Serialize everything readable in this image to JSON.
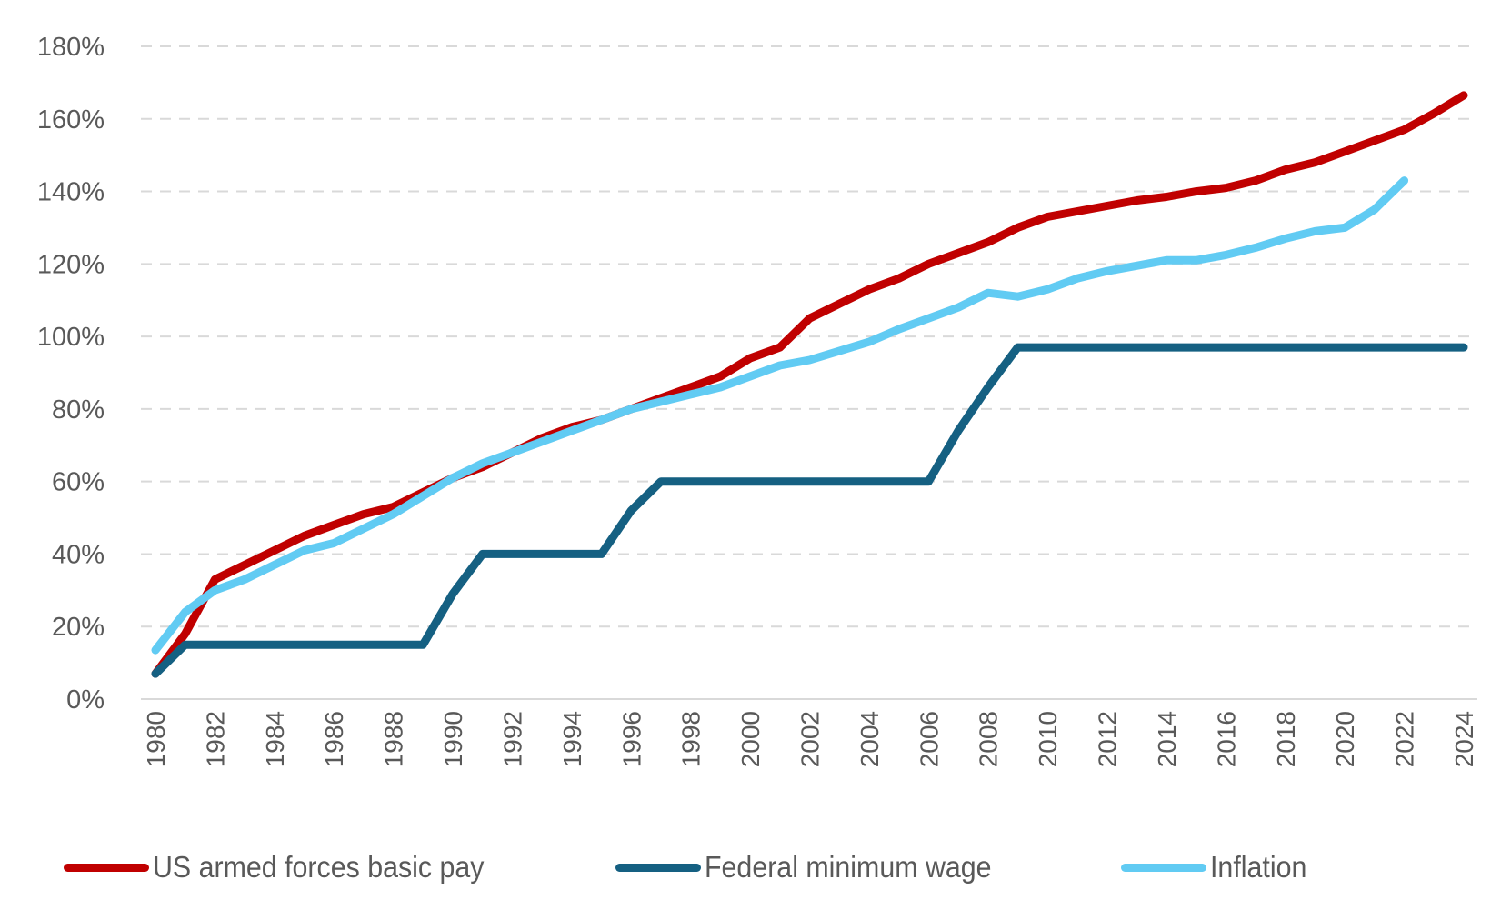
{
  "chart_data": {
    "type": "line",
    "title": "",
    "xlabel": "",
    "ylabel": "",
    "ylim": [
      0,
      180
    ],
    "y_tick_step": 20,
    "y_tick_format": "percent",
    "y_ticks": [
      "0%",
      "20%",
      "40%",
      "60%",
      "80%",
      "100%",
      "120%",
      "140%",
      "160%",
      "180%"
    ],
    "x_range": [
      1980,
      2024
    ],
    "x_tick_labels": [
      "1980",
      "1982",
      "1984",
      "1986",
      "1988",
      "1990",
      "1992",
      "1994",
      "1996",
      "1998",
      "2000",
      "2002",
      "2004",
      "2006",
      "2008",
      "2010",
      "2012",
      "2014",
      "2016",
      "2018",
      "2020",
      "2022",
      "2024"
    ],
    "grid": "horizontal dashed",
    "legend_position": "bottom",
    "x": [
      1980,
      1981,
      1982,
      1983,
      1984,
      1985,
      1986,
      1987,
      1988,
      1989,
      1990,
      1991,
      1992,
      1993,
      1994,
      1995,
      1996,
      1997,
      1998,
      1999,
      2000,
      2001,
      2002,
      2003,
      2004,
      2005,
      2006,
      2007,
      2008,
      2009,
      2010,
      2011,
      2012,
      2013,
      2014,
      2015,
      2016,
      2017,
      2018,
      2019,
      2020,
      2021,
      2022,
      2023,
      2024
    ],
    "series": [
      {
        "name": "US armed forces basic pay",
        "color": "#C00000",
        "values": [
          7,
          18,
          33,
          37,
          41,
          45,
          48,
          51,
          53,
          57,
          61,
          64,
          68,
          72,
          75,
          77,
          80,
          83,
          86,
          89,
          94,
          97,
          105,
          109,
          113,
          116,
          120,
          123,
          126,
          130,
          133,
          134.5,
          136,
          137.5,
          138.5,
          140,
          141,
          143,
          146,
          148,
          151,
          154,
          157,
          161.5,
          166.5
        ]
      },
      {
        "name": "Federal minimum wage",
        "color": "#156082",
        "values": [
          7,
          15,
          15,
          15,
          15,
          15,
          15,
          15,
          15,
          15,
          29,
          40,
          40,
          40,
          40,
          40,
          52,
          60,
          60,
          60,
          60,
          60,
          60,
          60,
          60,
          60,
          60,
          74,
          86,
          97,
          97,
          97,
          97,
          97,
          97,
          97,
          97,
          97,
          97,
          97,
          97,
          97,
          97,
          97,
          97
        ]
      },
      {
        "name": "Inflation",
        "color": "#61CBF3",
        "values": [
          13.5,
          24,
          30,
          33,
          37,
          41,
          43,
          47,
          51,
          56,
          61,
          65,
          68,
          71,
          74,
          77,
          80,
          82,
          84,
          86,
          89,
          92,
          93.5,
          96,
          98.5,
          102,
          105,
          108,
          112,
          111,
          113,
          116,
          118,
          119.5,
          121,
          121,
          122.5,
          124.5,
          127,
          129,
          130,
          135,
          143,
          null,
          null
        ]
      }
    ]
  },
  "legend": [
    {
      "label": "US armed forces basic pay",
      "color": "#C00000"
    },
    {
      "label": "Federal minimum wage",
      "color": "#156082"
    },
    {
      "label": "Inflation",
      "color": "#61CBF3"
    }
  ]
}
